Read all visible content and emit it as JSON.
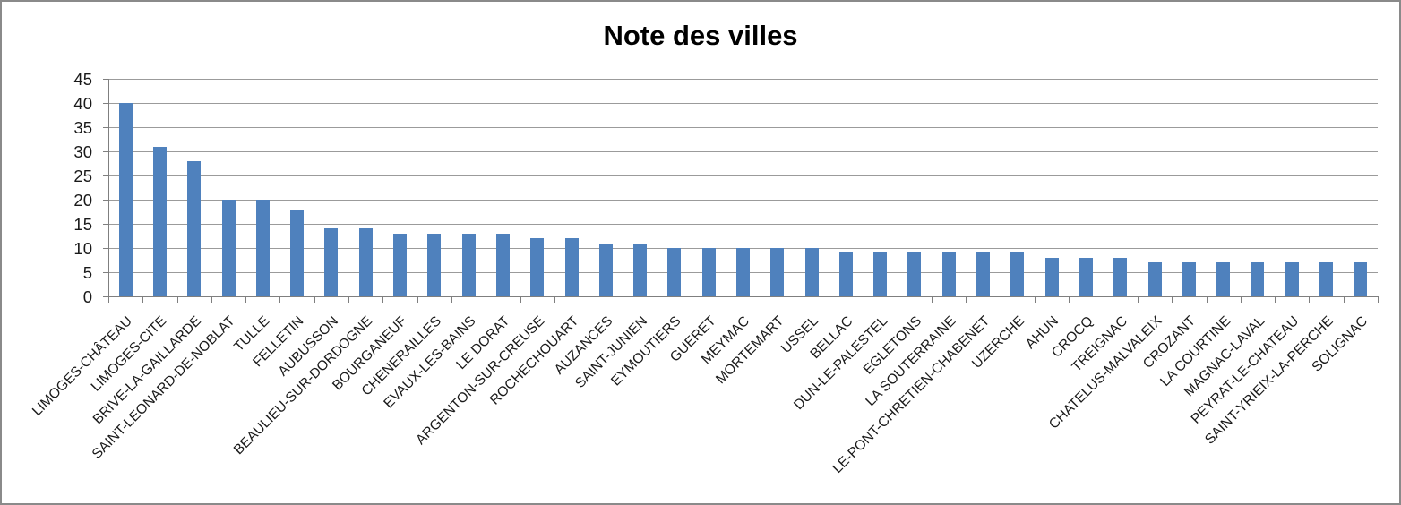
{
  "chart_data": {
    "type": "bar",
    "title": "Note des villes",
    "categories": [
      "LIMOGES-CHÂTEAU",
      "LIMOGES-CITE",
      "BRIVE-LA-GAILLARDE",
      "SAINT-LEONARD-DE-NOBLAT",
      "TULLE",
      "FELLETIN",
      "AUBUSSON",
      "BEAULIEU-SUR-DORDOGNE",
      "BOURGANEUF",
      "CHENERAILLES",
      "EVAUX-LES-BAINS",
      "LE DORAT",
      "ARGENTON-SUR-CREUSE",
      "ROCHECHOUART",
      "AUZANCES",
      "SAINT-JUNIEN",
      "EYMOUTIERS",
      "GUERET",
      "MEYMAC",
      "MORTEMART",
      "USSEL",
      "BELLAC",
      "DUN-LE-PALESTEL",
      "EGLETONS",
      "LA SOUTERRAINE",
      "LE-PONT-CHRETIEN-CHABENET",
      "UZERCHE",
      "AHUN",
      "CROCQ",
      "TREIGNAC",
      "CHATELUS-MALVALEIX",
      "CROZANT",
      "LA COURTINE",
      "MAGNAC-LAVAL",
      "PEYRAT-LE-CHATEAU",
      "SAINT-YRIEIX-LA-PERCHE",
      "SOLIGNAC"
    ],
    "values": [
      40,
      31,
      28,
      20,
      20,
      18,
      14,
      14,
      13,
      13,
      13,
      13,
      12,
      12,
      11,
      11,
      10,
      10,
      10,
      10,
      10,
      9,
      9,
      9,
      9,
      9,
      9,
      8,
      8,
      8,
      7,
      7,
      7,
      7,
      7,
      7,
      7
    ],
    "xlabel": "",
    "ylabel": "",
    "ylim": [
      0,
      45
    ],
    "ytick_step": 5,
    "ytick_labels": [
      "0",
      "5",
      "10",
      "15",
      "20",
      "25",
      "30",
      "35",
      "40",
      "45"
    ],
    "grid": "horizontal",
    "legend": "none",
    "colors": {
      "bar": "#4f81bd",
      "gridline": "#9b9b9b",
      "axis": "#7f7f7f",
      "label": "#1d1d1d",
      "title": "#000000",
      "frame_border": "#8a8a8a",
      "background": "#ffffff"
    }
  }
}
